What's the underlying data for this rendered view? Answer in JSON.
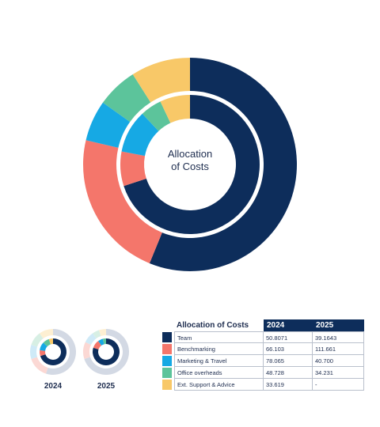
{
  "chart_data": {
    "type": "pie",
    "title": "Allocation of Costs",
    "center_label_lines": [
      "Allocation",
      "of Costs"
    ],
    "categories": [
      "Team",
      "Benchmarking",
      "Marketing & Travel",
      "Office overheads",
      "Ext. Support & Advice"
    ],
    "colors": [
      "#0d2d5b",
      "#f4766b",
      "#16a9e4",
      "#5cc49b",
      "#f8c868"
    ],
    "series": [
      {
        "name": "2024",
        "values": [
          50.8071,
          66.103,
          78.065,
          48.728,
          33.619
        ],
        "display": [
          "50.8071",
          "66.103",
          "78.065",
          "48.728",
          "33.619"
        ]
      },
      {
        "name": "2025",
        "values": [
          39.1643,
          111.661,
          40.7,
          34.231,
          null
        ],
        "display": [
          "39.1643",
          "111.661",
          "40.700",
          "34.231",
          "-"
        ]
      }
    ],
    "main_outer_shares": [
      0.5,
      0.2,
      0.055,
      0.055,
      0.08,
      0
    ],
    "main_inner_shares": [
      0.7,
      0.08,
      0.1,
      0.05,
      0.07
    ]
  },
  "table": {
    "title": "Allocation of Costs",
    "year_2024": "2024",
    "year_2025": "2025"
  },
  "mini_labels": {
    "y2024": "2024",
    "y2025": "2025"
  }
}
